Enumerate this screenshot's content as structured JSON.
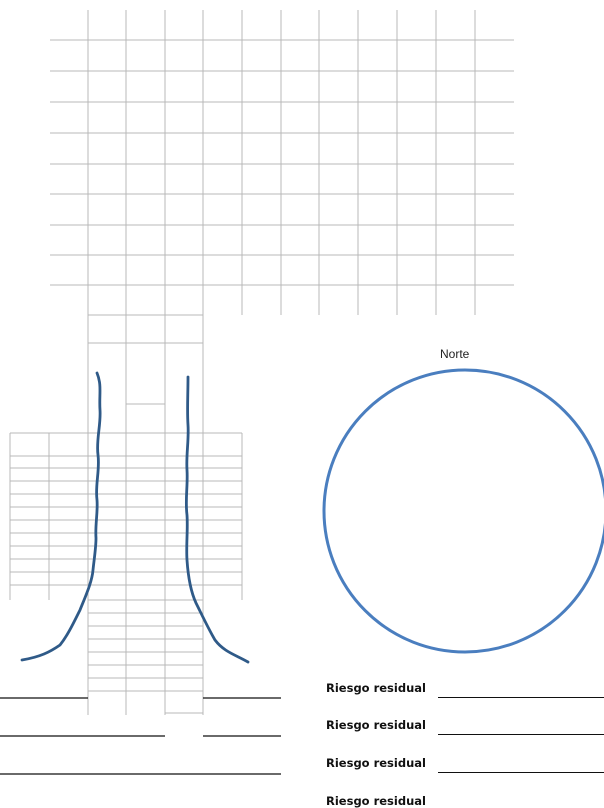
{
  "compass": {
    "label": "Norte",
    "stroke_color": "#4a7ebf"
  },
  "grid": {
    "stroke_color": "#b8b8b8"
  },
  "river": {
    "stroke_color": "#2f5a88"
  },
  "residual_risk": {
    "rows": [
      {
        "label": "Riesgo residual"
      },
      {
        "label": "Riesgo residual"
      },
      {
        "label": "Riesgo residual"
      },
      {
        "label": "Riesgo residual"
      }
    ]
  }
}
